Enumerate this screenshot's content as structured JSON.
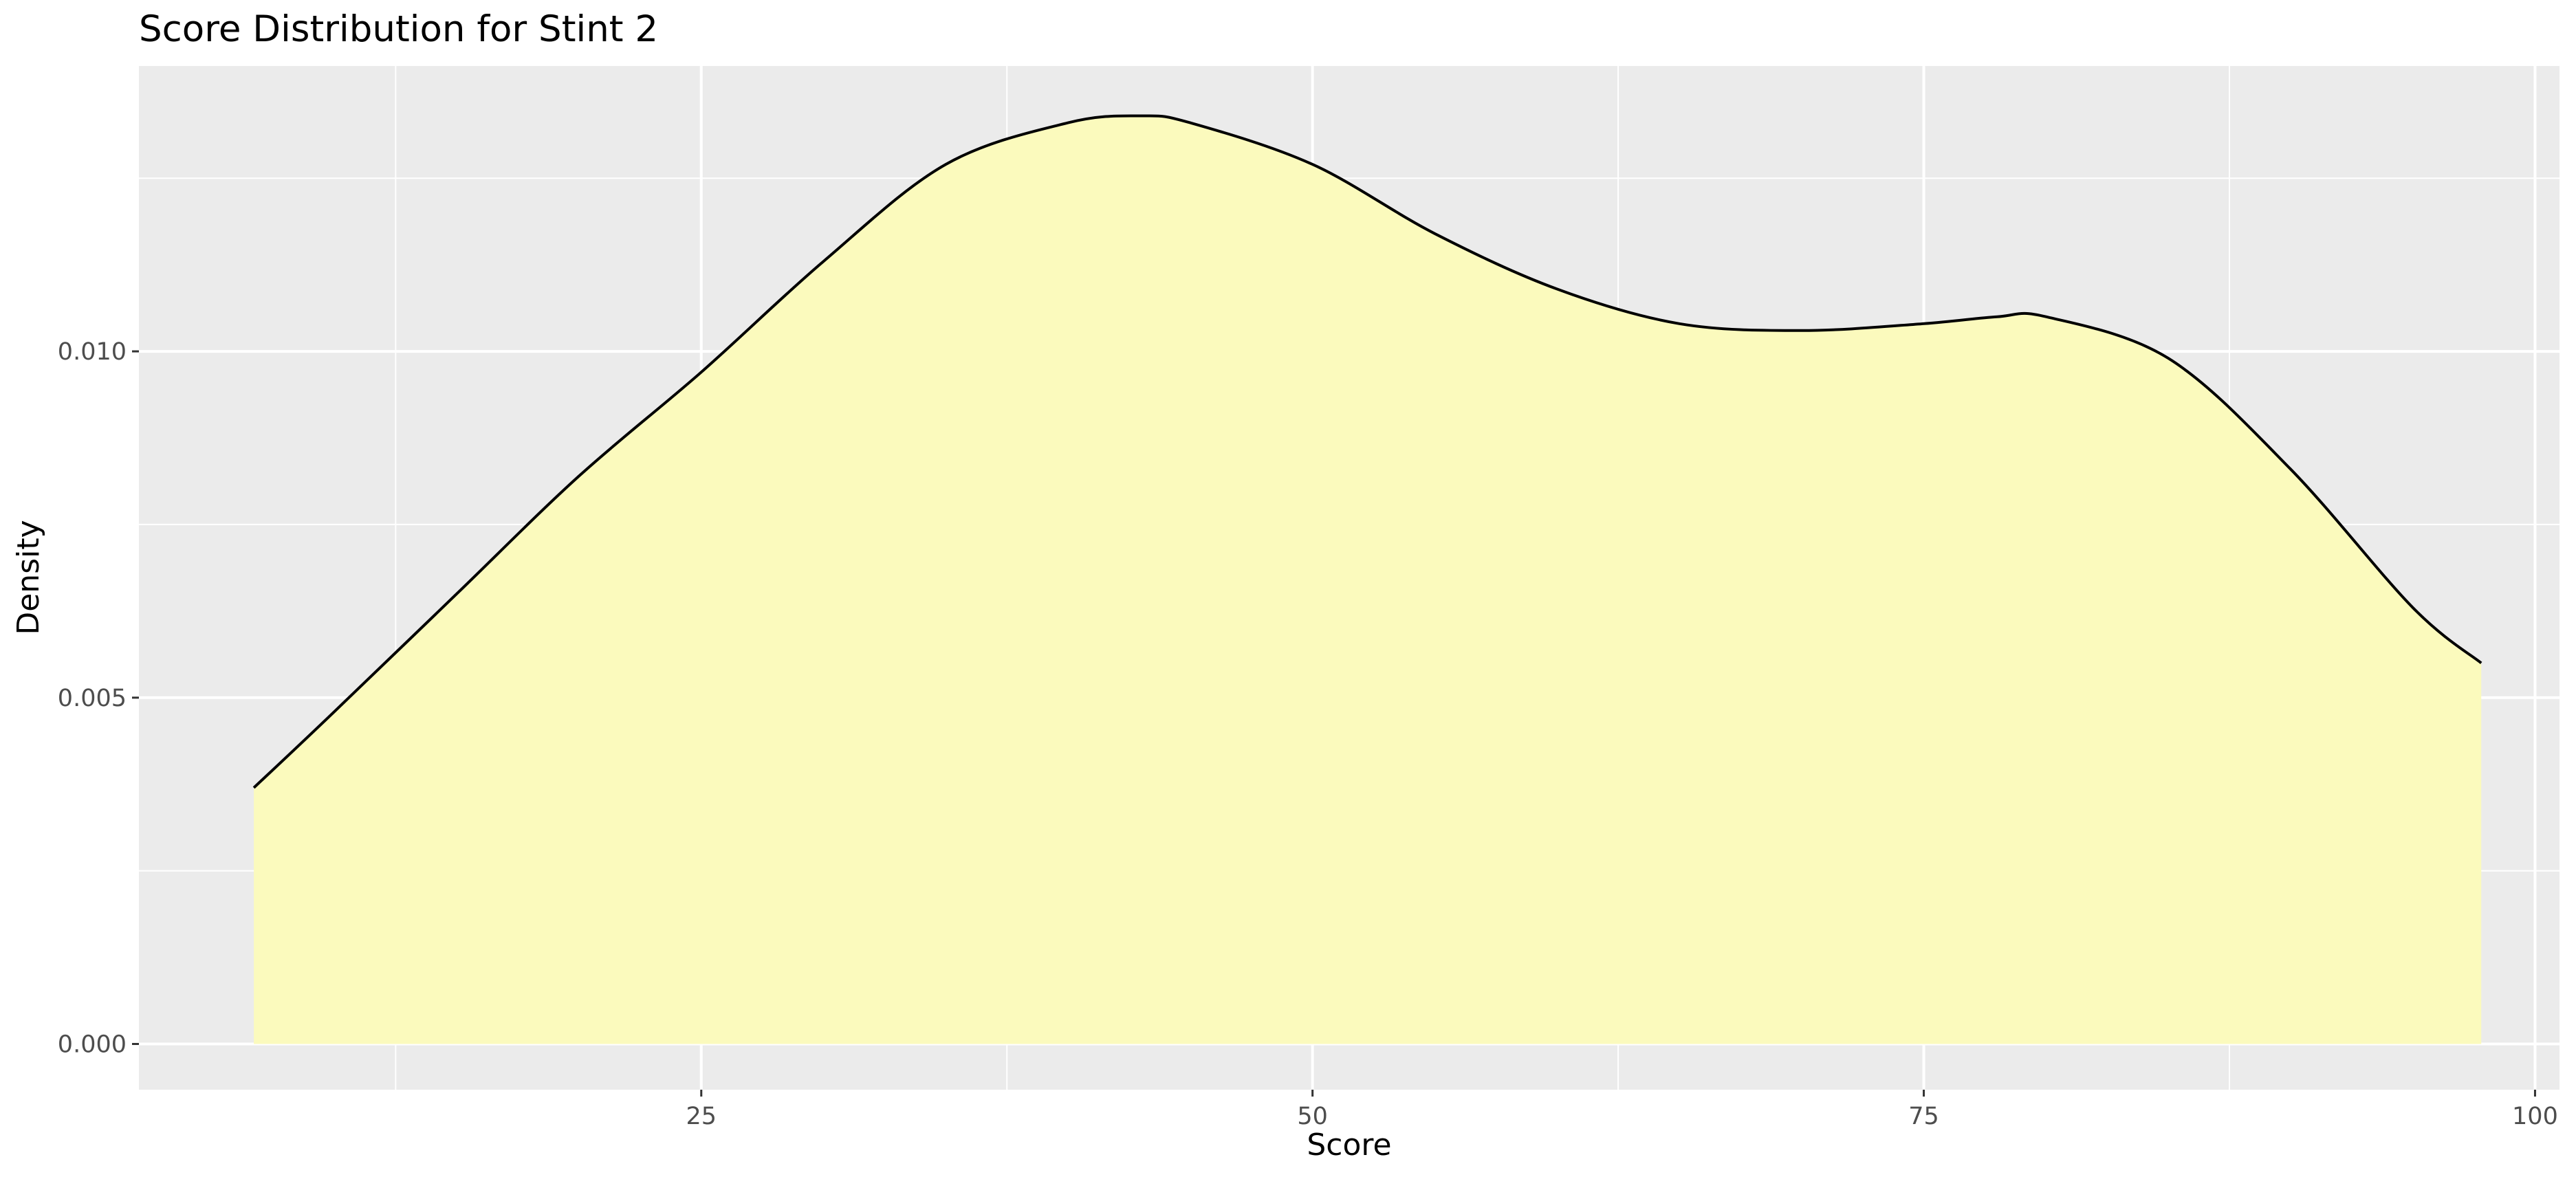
{
  "chart_data": {
    "type": "area",
    "title": "Score Distribution for Stint 2",
    "xlabel": "Score",
    "ylabel": "Density",
    "xlim": [
      2,
      101
    ],
    "ylim": [
      -0.00066,
      0.01412
    ],
    "x_ticks": [
      25,
      50,
      75,
      100
    ],
    "x_tick_labels": [
      "25",
      "50",
      "75",
      "100"
    ],
    "x_minor_ticks": [
      12.5,
      37.5,
      62.5,
      87.5
    ],
    "y_ticks": [
      0.0,
      0.005,
      0.01
    ],
    "y_tick_labels": [
      "0.000",
      "0.005",
      "0.010"
    ],
    "y_minor_ticks": [
      0.0025,
      0.0075,
      0.0125
    ],
    "grid": true,
    "legend": "none",
    "series": [
      {
        "x": [
          6.7,
          10,
          15,
          20,
          25,
          30,
          35,
          40,
          43,
          45,
          50,
          55,
          60,
          65,
          70,
          75,
          78,
          80,
          85,
          90,
          95,
          97.8
        ],
        "y": [
          0.0037,
          0.0048,
          0.0065,
          0.0082,
          0.0097,
          0.0113,
          0.0127,
          0.0133,
          0.0134,
          0.0133,
          0.0127,
          0.0117,
          0.0109,
          0.0104,
          0.0103,
          0.0104,
          0.0105,
          0.0105,
          0.0099,
          0.0083,
          0.0063,
          0.0055
        ],
        "fill_color": "#fbfabd",
        "line_color": "#000000"
      }
    ],
    "panel_color": "#ebebeb",
    "grid_color": "#ffffff"
  }
}
